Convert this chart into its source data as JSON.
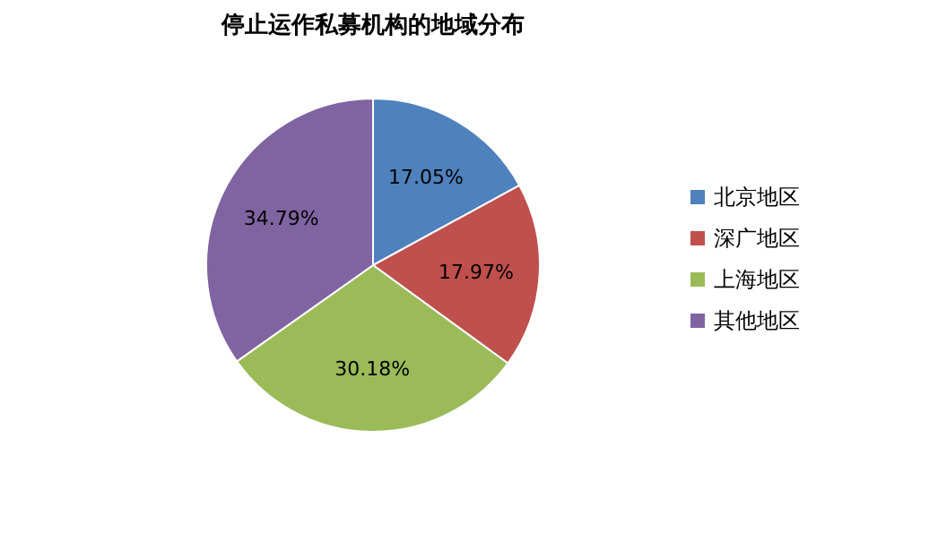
{
  "chart_data": {
    "type": "pie",
    "title": "停止运作私募机构的地域分布",
    "categories": [
      "北京地区",
      "深广地区",
      "上海地区",
      "其他地区"
    ],
    "values": [
      17.05,
      17.97,
      30.18,
      34.79
    ],
    "value_labels": [
      "17.05%",
      "17.97%",
      "30.18%",
      "34.79%"
    ],
    "colors": [
      "#4f81bd",
      "#c0504d",
      "#9bbb59",
      "#8064a2"
    ],
    "legend": "right"
  }
}
